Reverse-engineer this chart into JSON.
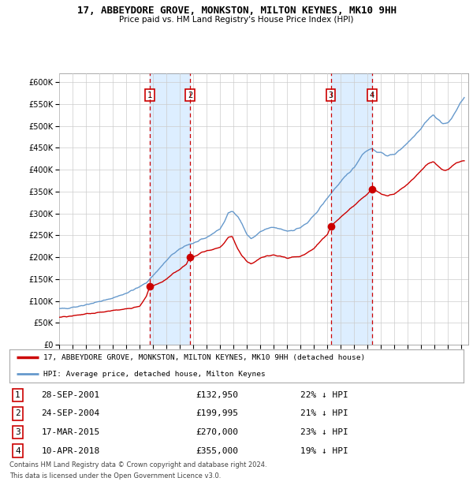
{
  "title": "17, ABBEYDORE GROVE, MONKSTON, MILTON KEYNES, MK10 9HH",
  "subtitle": "Price paid vs. HM Land Registry's House Price Index (HPI)",
  "legend_line1": "17, ABBEYDORE GROVE, MONKSTON, MILTON KEYNES, MK10 9HH (detached house)",
  "legend_line2": "HPI: Average price, detached house, Milton Keynes",
  "footer_line1": "Contains HM Land Registry data © Crown copyright and database right 2024.",
  "footer_line2": "This data is licensed under the Open Government Licence v3.0.",
  "transactions": [
    {
      "num": 1,
      "date": "28-SEP-2001",
      "price": 132950,
      "pct": "22%",
      "direction": "↓",
      "year": 2001.75
    },
    {
      "num": 2,
      "date": "24-SEP-2004",
      "price": 199995,
      "pct": "21%",
      "direction": "↓",
      "year": 2004.75
    },
    {
      "num": 3,
      "date": "17-MAR-2015",
      "price": 270000,
      "pct": "23%",
      "direction": "↓",
      "year": 2015.25
    },
    {
      "num": 4,
      "date": "10-APR-2018",
      "price": 355000,
      "pct": "19%",
      "direction": "↓",
      "year": 2018.33
    }
  ],
  "hpi_color": "#6699cc",
  "price_color": "#cc0000",
  "dashed_color": "#cc0000",
  "shade_color": "#ddeeff",
  "bg_color": "#ffffff",
  "grid_color": "#cccccc",
  "ylim": [
    0,
    620000
  ],
  "yticks": [
    0,
    50000,
    100000,
    150000,
    200000,
    250000,
    300000,
    350000,
    400000,
    450000,
    500000,
    550000,
    600000
  ],
  "xmin": 1995.0,
  "xmax": 2025.5,
  "hpi_anchors": [
    [
      1995.0,
      82000
    ],
    [
      1995.5,
      83000
    ],
    [
      1996.0,
      86000
    ],
    [
      1996.5,
      88000
    ],
    [
      1997.0,
      92000
    ],
    [
      1997.5,
      95000
    ],
    [
      1998.0,
      99000
    ],
    [
      1998.5,
      102000
    ],
    [
      1999.0,
      107000
    ],
    [
      1999.5,
      112000
    ],
    [
      2000.0,
      118000
    ],
    [
      2000.5,
      125000
    ],
    [
      2001.0,
      132000
    ],
    [
      2001.5,
      142000
    ],
    [
      2002.0,
      158000
    ],
    [
      2002.5,
      175000
    ],
    [
      2003.0,
      192000
    ],
    [
      2003.5,
      208000
    ],
    [
      2004.0,
      218000
    ],
    [
      2004.5,
      228000
    ],
    [
      2005.0,
      232000
    ],
    [
      2005.5,
      238000
    ],
    [
      2006.0,
      245000
    ],
    [
      2006.5,
      255000
    ],
    [
      2007.0,
      265000
    ],
    [
      2007.3,
      280000
    ],
    [
      2007.6,
      300000
    ],
    [
      2007.9,
      305000
    ],
    [
      2008.3,
      295000
    ],
    [
      2008.6,
      278000
    ],
    [
      2009.0,
      252000
    ],
    [
      2009.3,
      242000
    ],
    [
      2009.6,
      248000
    ],
    [
      2010.0,
      258000
    ],
    [
      2010.5,
      265000
    ],
    [
      2011.0,
      268000
    ],
    [
      2011.5,
      264000
    ],
    [
      2012.0,
      260000
    ],
    [
      2012.5,
      262000
    ],
    [
      2013.0,
      268000
    ],
    [
      2013.5,
      278000
    ],
    [
      2014.0,
      295000
    ],
    [
      2014.5,
      315000
    ],
    [
      2015.0,
      335000
    ],
    [
      2015.5,
      355000
    ],
    [
      2016.0,
      372000
    ],
    [
      2016.5,
      390000
    ],
    [
      2017.0,
      405000
    ],
    [
      2017.3,
      420000
    ],
    [
      2017.6,
      435000
    ],
    [
      2018.0,
      445000
    ],
    [
      2018.3,
      448000
    ],
    [
      2018.6,
      442000
    ],
    [
      2019.0,
      438000
    ],
    [
      2019.5,
      432000
    ],
    [
      2020.0,
      435000
    ],
    [
      2020.5,
      448000
    ],
    [
      2021.0,
      462000
    ],
    [
      2021.3,
      472000
    ],
    [
      2021.6,
      482000
    ],
    [
      2022.0,
      495000
    ],
    [
      2022.3,
      508000
    ],
    [
      2022.6,
      518000
    ],
    [
      2022.9,
      525000
    ],
    [
      2023.2,
      515000
    ],
    [
      2023.5,
      508000
    ],
    [
      2023.8,
      505000
    ],
    [
      2024.0,
      508000
    ],
    [
      2024.3,
      518000
    ],
    [
      2024.6,
      535000
    ],
    [
      2024.9,
      552000
    ],
    [
      2025.2,
      565000
    ]
  ],
  "price_anchors": [
    [
      1995.0,
      63000
    ],
    [
      1995.5,
      64000
    ],
    [
      1996.0,
      66000
    ],
    [
      1996.5,
      68000
    ],
    [
      1997.0,
      70000
    ],
    [
      1997.5,
      72000
    ],
    [
      1998.0,
      74000
    ],
    [
      1998.5,
      76000
    ],
    [
      1999.0,
      78000
    ],
    [
      1999.5,
      80000
    ],
    [
      2000.0,
      82000
    ],
    [
      2000.5,
      85000
    ],
    [
      2001.0,
      88000
    ],
    [
      2001.5,
      110000
    ],
    [
      2001.75,
      132950
    ],
    [
      2002.0,
      135000
    ],
    [
      2002.3,
      138000
    ],
    [
      2002.6,
      142000
    ],
    [
      2003.0,
      150000
    ],
    [
      2003.5,
      162000
    ],
    [
      2004.0,
      172000
    ],
    [
      2004.5,
      185000
    ],
    [
      2004.75,
      199995
    ],
    [
      2005.0,
      200000
    ],
    [
      2005.3,
      205000
    ],
    [
      2005.6,
      210000
    ],
    [
      2006.0,
      215000
    ],
    [
      2006.5,
      218000
    ],
    [
      2007.0,
      222000
    ],
    [
      2007.3,
      232000
    ],
    [
      2007.6,
      245000
    ],
    [
      2007.9,
      248000
    ],
    [
      2008.3,
      220000
    ],
    [
      2008.6,
      205000
    ],
    [
      2009.0,
      190000
    ],
    [
      2009.3,
      185000
    ],
    [
      2009.6,
      190000
    ],
    [
      2010.0,
      198000
    ],
    [
      2010.5,
      203000
    ],
    [
      2011.0,
      205000
    ],
    [
      2011.5,
      202000
    ],
    [
      2012.0,
      198000
    ],
    [
      2012.5,
      200000
    ],
    [
      2013.0,
      202000
    ],
    [
      2013.5,
      210000
    ],
    [
      2014.0,
      220000
    ],
    [
      2014.5,
      238000
    ],
    [
      2015.0,
      252000
    ],
    [
      2015.25,
      270000
    ],
    [
      2015.5,
      278000
    ],
    [
      2016.0,
      292000
    ],
    [
      2016.5,
      305000
    ],
    [
      2017.0,
      318000
    ],
    [
      2017.5,
      332000
    ],
    [
      2018.0,
      344000
    ],
    [
      2018.33,
      355000
    ],
    [
      2018.6,
      352000
    ],
    [
      2019.0,
      345000
    ],
    [
      2019.5,
      340000
    ],
    [
      2020.0,
      345000
    ],
    [
      2020.5,
      355000
    ],
    [
      2021.0,
      368000
    ],
    [
      2021.5,
      382000
    ],
    [
      2022.0,
      398000
    ],
    [
      2022.3,
      408000
    ],
    [
      2022.6,
      415000
    ],
    [
      2022.9,
      418000
    ],
    [
      2023.2,
      410000
    ],
    [
      2023.5,
      402000
    ],
    [
      2023.8,
      398000
    ],
    [
      2024.0,
      400000
    ],
    [
      2024.3,
      408000
    ],
    [
      2024.6,
      415000
    ],
    [
      2024.9,
      418000
    ],
    [
      2025.2,
      420000
    ]
  ]
}
